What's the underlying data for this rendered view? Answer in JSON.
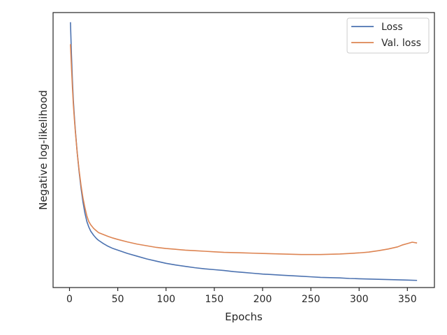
{
  "chart_data": {
    "type": "line",
    "title": "",
    "xlabel": "Epochs",
    "ylabel": "Negative log-likelihood",
    "xlim": [
      -17,
      378
    ],
    "ylim": [
      0,
      1
    ],
    "xticks": [
      0,
      50,
      100,
      150,
      200,
      250,
      300,
      350
    ],
    "yticks_shown": false,
    "grid": false,
    "legend": "top-right",
    "series": [
      {
        "name": "Loss",
        "color": "#4c72b0",
        "x": [
          1,
          2,
          3,
          4,
          5,
          6,
          8,
          10,
          12,
          14,
          16,
          18,
          20,
          22,
          25,
          28,
          30,
          35,
          40,
          45,
          50,
          60,
          70,
          80,
          90,
          100,
          110,
          120,
          130,
          140,
          150,
          160,
          170,
          180,
          190,
          200,
          210,
          220,
          230,
          240,
          250,
          260,
          270,
          280,
          290,
          300,
          310,
          320,
          330,
          340,
          350,
          360
        ],
        "y": [
          0.965,
          0.85,
          0.755,
          0.68,
          0.625,
          0.575,
          0.49,
          0.42,
          0.36,
          0.31,
          0.27,
          0.24,
          0.22,
          0.205,
          0.19,
          0.178,
          0.172,
          0.16,
          0.15,
          0.142,
          0.136,
          0.124,
          0.114,
          0.104,
          0.096,
          0.088,
          0.082,
          0.077,
          0.072,
          0.068,
          0.065,
          0.062,
          0.058,
          0.055,
          0.052,
          0.049,
          0.047,
          0.045,
          0.043,
          0.041,
          0.039,
          0.037,
          0.036,
          0.035,
          0.033,
          0.032,
          0.031,
          0.03,
          0.029,
          0.028,
          0.027,
          0.026
        ]
      },
      {
        "name": "Val. loss",
        "color": "#dd8452",
        "x": [
          1,
          2,
          3,
          4,
          5,
          6,
          8,
          10,
          12,
          14,
          16,
          18,
          20,
          22,
          25,
          28,
          30,
          35,
          40,
          45,
          50,
          60,
          70,
          80,
          90,
          100,
          110,
          120,
          130,
          140,
          150,
          160,
          170,
          180,
          190,
          200,
          210,
          220,
          230,
          240,
          250,
          260,
          270,
          280,
          290,
          300,
          310,
          320,
          330,
          340,
          345,
          350,
          355,
          360
        ],
        "y": [
          0.885,
          0.805,
          0.73,
          0.665,
          0.615,
          0.57,
          0.49,
          0.425,
          0.37,
          0.325,
          0.29,
          0.26,
          0.24,
          0.228,
          0.215,
          0.206,
          0.2,
          0.193,
          0.186,
          0.18,
          0.175,
          0.166,
          0.158,
          0.152,
          0.146,
          0.142,
          0.139,
          0.136,
          0.134,
          0.132,
          0.13,
          0.128,
          0.127,
          0.126,
          0.125,
          0.124,
          0.123,
          0.122,
          0.121,
          0.12,
          0.12,
          0.12,
          0.121,
          0.122,
          0.124,
          0.126,
          0.129,
          0.134,
          0.14,
          0.148,
          0.155,
          0.16,
          0.165,
          0.162
        ]
      }
    ]
  }
}
